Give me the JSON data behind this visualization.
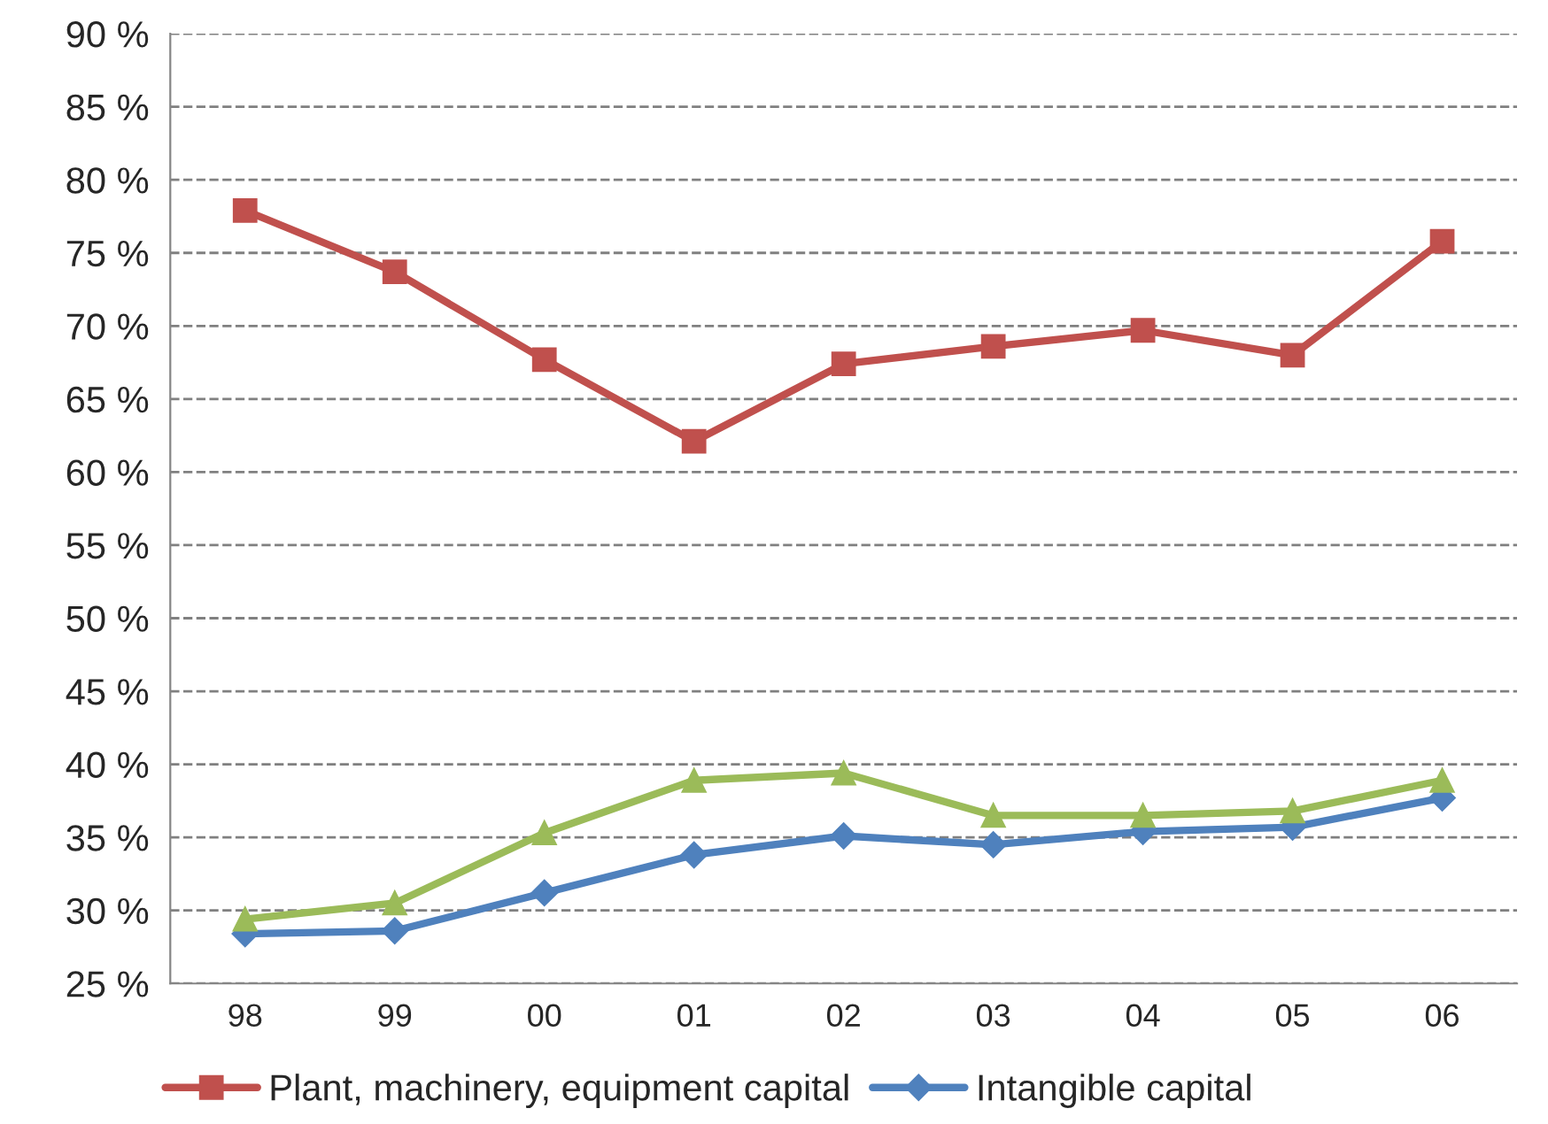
{
  "chart_data": {
    "type": "line",
    "categories": [
      "98",
      "99",
      "00",
      "01",
      "02",
      "03",
      "04",
      "05",
      "06"
    ],
    "series": [
      {
        "name": "Plant, machinery, equipment capital",
        "color": "#c0504d",
        "marker": "square",
        "values": [
          77.9,
          73.7,
          67.7,
          62.1,
          67.4,
          68.6,
          69.7,
          68.0,
          75.8
        ]
      },
      {
        "name": "Intangible capital",
        "color": "#4f81bd",
        "marker": "diamond",
        "values": [
          28.4,
          28.6,
          31.2,
          33.8,
          35.1,
          34.5,
          35.4,
          35.7,
          37.7
        ]
      },
      {
        "color": "#9bbb59",
        "marker": "triangle",
        "values": [
          29.4,
          30.5,
          35.3,
          38.9,
          39.4,
          36.5,
          36.5,
          36.8,
          38.9
        ]
      }
    ],
    "ylim": [
      25,
      90
    ],
    "yticks": [
      {
        "value": 25,
        "label": "25 %"
      },
      {
        "value": 30,
        "label": "30 %"
      },
      {
        "value": 35,
        "label": "35 %"
      },
      {
        "value": 40,
        "label": "40 %"
      },
      {
        "value": 45,
        "label": "45 %"
      },
      {
        "value": 50,
        "label": "50 %"
      },
      {
        "value": 55,
        "label": "55 %"
      },
      {
        "value": 60,
        "label": "60 %"
      },
      {
        "value": 65,
        "label": "65 %"
      },
      {
        "value": 70,
        "label": "70 %"
      },
      {
        "value": 75,
        "label": "75 %"
      },
      {
        "value": 80,
        "label": "80 %"
      },
      {
        "value": 85,
        "label": "85 %"
      },
      {
        "value": 90,
        "label": "90 %"
      }
    ],
    "grid": "y",
    "legend": "bottom",
    "line_style": "solid"
  }
}
